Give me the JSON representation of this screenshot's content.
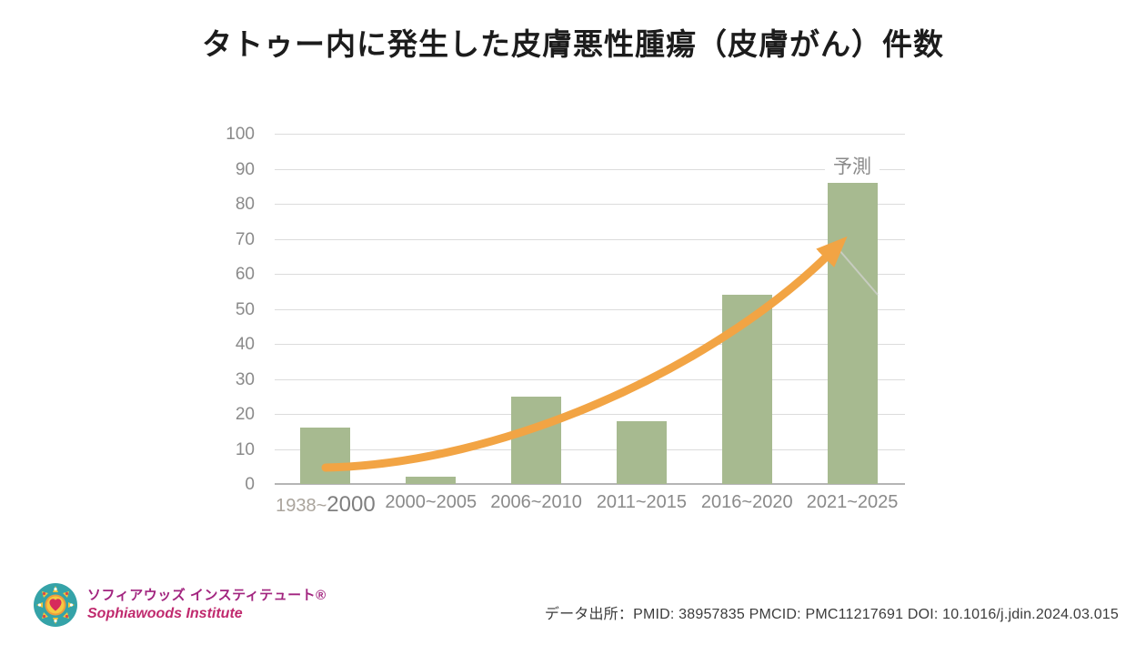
{
  "title": "タトゥー内に発生した皮膚悪性腫瘍（皮膚がん）件数",
  "chart_data": {
    "type": "bar",
    "title": "タトゥー内に発生した皮膚悪性腫瘍（皮膚がん）件数",
    "categories": [
      "1938~2000",
      "2000~2005",
      "2006~2010",
      "2011~2015",
      "2016~2020",
      "2021~2025"
    ],
    "values": [
      16,
      2,
      25,
      18,
      54,
      86
    ],
    "first_category_parts": [
      "1938~",
      "2000"
    ],
    "xlabel": "",
    "ylabel": "",
    "ylim": [
      0,
      100
    ],
    "ytick_step": 10,
    "grid": true,
    "legend": "none",
    "annotation": "予測",
    "annotation_category": "2021~2025",
    "bar_color": "#a7ba90",
    "arrow_color": "#f2a444",
    "gridline_color": "#dcdcdc",
    "axis_line_color": "#b5b5b5",
    "tick_label_color": "#8a8a8a"
  },
  "logo": {
    "name_ja": "ソフィアウッズ インスティテュート®",
    "name_en": "Sophiawoods Institute"
  },
  "footer": {
    "source": "データ出所：PMID: 38957835 PMCID: PMC11217691 DOI: 10.1016/j.jdin.2024.03.015"
  }
}
